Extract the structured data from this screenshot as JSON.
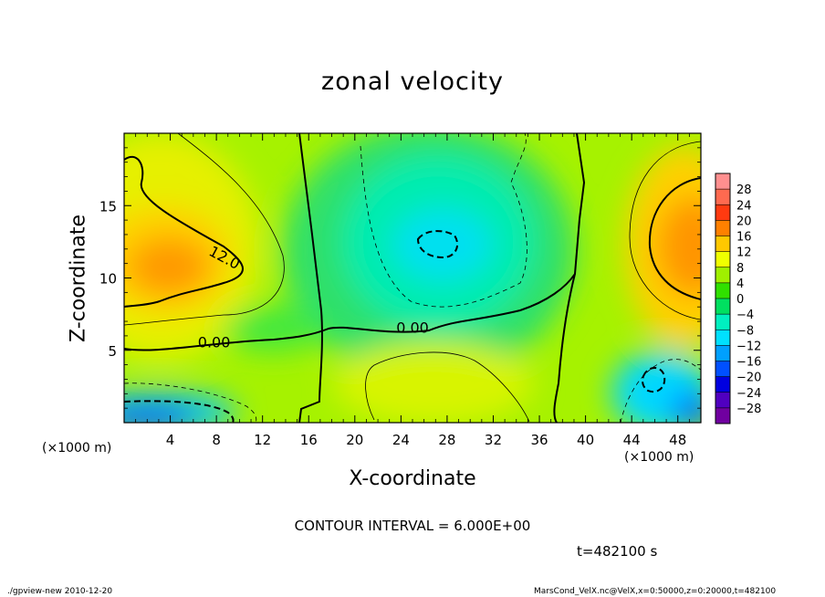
{
  "chart_data": {
    "type": "heatmap",
    "title": "zonal velocity",
    "xlabel": "X-coordinate",
    "ylabel": "Z-coordinate",
    "x_unit_label": "(×1000 m)",
    "xlim": [
      0,
      50
    ],
    "ylim": [
      0,
      20
    ],
    "x_ticks": [
      "4",
      "8",
      "12",
      "16",
      "20",
      "24",
      "28",
      "32",
      "36",
      "40",
      "44",
      "48"
    ],
    "y_ticks": [
      "5",
      "10",
      "15"
    ],
    "contour_labels": [
      {
        "text": "12.0",
        "x": 8.5,
        "z": 11.1
      },
      {
        "text": "0.00",
        "x": 7.8,
        "z": 5.2
      },
      {
        "text": "0.00",
        "x": 25.0,
        "z": 6.2
      }
    ],
    "contour_interval_text": "CONTOUR INTERVAL = 6.000E+00",
    "time_text": "t=482100 s",
    "colorbar": {
      "labels": [
        "28",
        "24",
        "20",
        "16",
        "12",
        "8",
        "4",
        "0",
        "-4",
        "-8",
        "-12",
        "-16",
        "-20",
        "-24",
        "-28"
      ],
      "colors": [
        "#ff8f8f",
        "#ff6a50",
        "#ff3a10",
        "#ff8000",
        "#ffc800",
        "#f0ff00",
        "#a0f000",
        "#30e000",
        "#00e060",
        "#00f0c0",
        "#00e0ff",
        "#00a0ff",
        "#0050ff",
        "#0000e0",
        "#5000c0",
        "#7000a0"
      ]
    },
    "features": [
      {
        "kind": "max",
        "x": 4,
        "z": 11,
        "value": 16
      },
      {
        "kind": "max",
        "x": 48,
        "z": 12.5,
        "value": 16
      },
      {
        "kind": "min",
        "x": 27,
        "z": 12.5,
        "value": -10
      },
      {
        "kind": "min",
        "x": 2,
        "z": 1,
        "value": -20
      },
      {
        "kind": "min",
        "x": 49,
        "z": 1,
        "value": -18
      },
      {
        "kind": "min",
        "x": 46,
        "z": 2.5,
        "value": -10
      },
      {
        "kind": "max",
        "x": 27,
        "z": 3,
        "value": 8
      }
    ]
  },
  "footer_left": "./gpview-new   2010-12-20",
  "footer_right": "MarsCond_VelX.nc@VelX,x=0:50000,z=0:20000,t=482100"
}
